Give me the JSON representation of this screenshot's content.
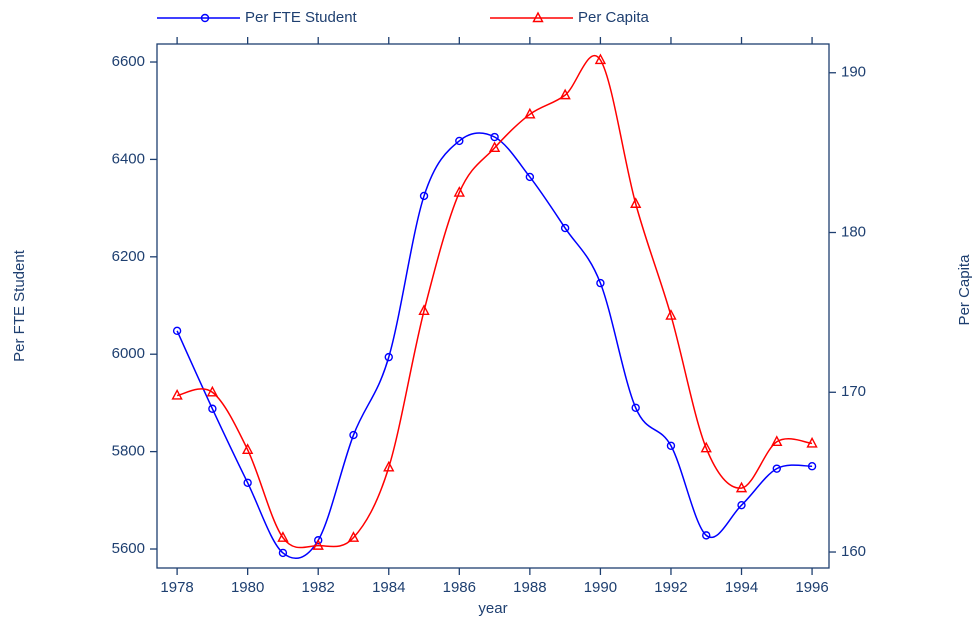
{
  "chart_data": {
    "type": "line",
    "x_label": "year",
    "y_label": "Per FTE Student",
    "y2_label": "Per Capita",
    "x": [
      1978,
      1979,
      1980,
      1981,
      1982,
      1983,
      1984,
      1985,
      1986,
      1987,
      1988,
      1989,
      1990,
      1991,
      1992,
      1993,
      1994,
      1995,
      1996
    ],
    "xlim": [
      1977.43,
      1996.48
    ],
    "xticks": [
      1978,
      1980,
      1982,
      1984,
      1986,
      1988,
      1990,
      1992,
      1994,
      1996
    ],
    "ylim": [
      5561,
      6637
    ],
    "yticks": [
      5600,
      5800,
      6000,
      6200,
      6400,
      6600
    ],
    "y2lim": [
      159.0,
      191.8
    ],
    "y2ticks": [
      160,
      170,
      180,
      190
    ],
    "series": [
      {
        "name": "Per FTE Student",
        "color": "#0000ff",
        "marker": "circle",
        "values": [
          6048,
          5888,
          5736,
          5592,
          5618,
          5834,
          5994,
          6325,
          6438,
          6446,
          6364,
          6259,
          6146,
          5890,
          5812,
          5628,
          5690,
          5765,
          5770
        ]
      },
      {
        "name": "Per Capita",
        "color": "#ff0000",
        "marker": "triangle",
        "axis": "y2",
        "values": [
          169.8,
          170.0,
          166.4,
          160.9,
          160.4,
          160.9,
          165.3,
          175.1,
          182.5,
          185.3,
          187.4,
          188.6,
          190.8,
          181.8,
          174.8,
          166.5,
          164.0,
          166.9,
          166.8
        ]
      }
    ]
  }
}
